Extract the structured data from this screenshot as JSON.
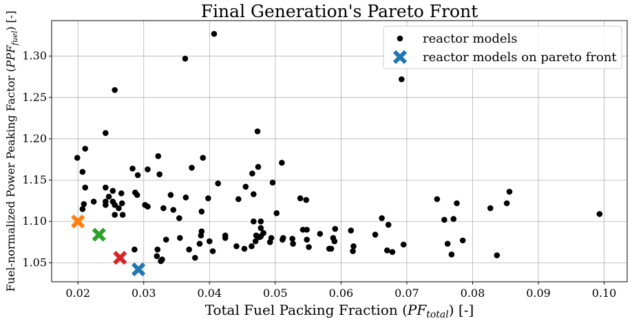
{
  "chart_data": {
    "type": "scatter",
    "title": "Final Generation's Pareto Front",
    "xlabel": "Total Fuel Packing Fraction (PF_total) [-]",
    "xlabel_parts": {
      "pre": "Total Fuel Packing Fraction (",
      "var": "PF",
      "sub": "total",
      "post": ") [-]"
    },
    "ylabel": "Fuel-normalized Power Peaking Factor (PPF_fuel) [-]",
    "ylabel_parts": {
      "pre": "Fuel-normalized Power Peaking Factor (",
      "var": "PPF",
      "sub": "fuel",
      "post": ") [-]"
    },
    "xlim": [
      0.016,
      0.1035
    ],
    "ylim": [
      1.027,
      1.343
    ],
    "xticks": [
      0.02,
      0.03,
      0.04,
      0.05,
      0.06,
      0.07,
      0.08,
      0.09,
      0.1
    ],
    "xtick_labels": [
      "0.02",
      "0.03",
      "0.04",
      "0.05",
      "0.06",
      "0.07",
      "0.08",
      "0.09",
      "0.10"
    ],
    "yticks": [
      1.05,
      1.1,
      1.15,
      1.2,
      1.25,
      1.3
    ],
    "ytick_labels": [
      "1.05",
      "1.10",
      "1.15",
      "1.20",
      "1.25",
      "1.30"
    ],
    "grid": true,
    "legend_position": "top-right",
    "colors": {
      "points": "#000000",
      "pareto": [
        "#ff7f0e",
        "#2ca02c",
        "#d62728",
        "#1f77b4"
      ],
      "legend_pareto": "#1f77b4"
    },
    "series": [
      {
        "name": "reactor models",
        "marker": "circle",
        "points": [
          [
            0.0199,
            1.177
          ],
          [
            0.0207,
            1.115
          ],
          [
            0.0209,
            1.121
          ],
          [
            0.0207,
            1.16
          ],
          [
            0.0211,
            1.188
          ],
          [
            0.0211,
            1.141
          ],
          [
            0.0224,
            1.124
          ],
          [
            0.0242,
            1.141
          ],
          [
            0.0242,
            1.124
          ],
          [
            0.0242,
            1.12
          ],
          [
            0.0242,
            1.207
          ],
          [
            0.0247,
            1.13
          ],
          [
            0.0253,
            1.124
          ],
          [
            0.0253,
            1.137
          ],
          [
            0.0256,
            1.108
          ],
          [
            0.0256,
            1.259
          ],
          [
            0.0256,
            1.12
          ],
          [
            0.0262,
            1.116
          ],
          [
            0.0266,
            1.134
          ],
          [
            0.0268,
            1.108
          ],
          [
            0.0267,
            1.122
          ],
          [
            0.0283,
            1.164
          ],
          [
            0.0286,
            1.066
          ],
          [
            0.0287,
            1.135
          ],
          [
            0.029,
            1.132
          ],
          [
            0.0291,
            1.156
          ],
          [
            0.0302,
            1.12
          ],
          [
            0.0306,
            1.118
          ],
          [
            0.0306,
            1.163
          ],
          [
            0.032,
            1.058
          ],
          [
            0.0321,
            1.066
          ],
          [
            0.0322,
            1.179
          ],
          [
            0.0324,
            1.157
          ],
          [
            0.0326,
            1.052
          ],
          [
            0.0328,
            1.054
          ],
          [
            0.033,
            1.116
          ],
          [
            0.0334,
            1.078
          ],
          [
            0.0341,
            1.132
          ],
          [
            0.0345,
            1.114
          ],
          [
            0.0354,
            1.104
          ],
          [
            0.0355,
            1.08
          ],
          [
            0.0363,
            1.297
          ],
          [
            0.0364,
            1.129
          ],
          [
            0.0369,
            1.066
          ],
          [
            0.0373,
            1.165
          ],
          [
            0.0378,
            1.056
          ],
          [
            0.0385,
            1.073
          ],
          [
            0.0387,
            1.083
          ],
          [
            0.0388,
            1.088
          ],
          [
            0.0388,
            1.112
          ],
          [
            0.039,
            1.177
          ],
          [
            0.0398,
            1.128
          ],
          [
            0.04,
            1.076
          ],
          [
            0.0405,
            1.064
          ],
          [
            0.0407,
            1.327
          ],
          [
            0.0413,
            1.146
          ],
          [
            0.0424,
            1.08
          ],
          [
            0.0424,
            1.083
          ],
          [
            0.0441,
            1.07
          ],
          [
            0.0444,
            1.127
          ],
          [
            0.0453,
            1.067
          ],
          [
            0.0455,
            1.142
          ],
          [
            0.0464,
            1.07
          ],
          [
            0.0465,
            1.158
          ],
          [
            0.0467,
            1.1
          ],
          [
            0.0467,
            1.133
          ],
          [
            0.047,
            1.076
          ],
          [
            0.0471,
            1.083
          ],
          [
            0.0473,
            1.209
          ],
          [
            0.0474,
            1.166
          ],
          [
            0.0476,
            1.081
          ],
          [
            0.0478,
            1.092
          ],
          [
            0.0478,
            1.1
          ],
          [
            0.0478,
            1.082
          ],
          [
            0.0482,
            1.086
          ],
          [
            0.0492,
            1.075
          ],
          [
            0.0494,
            1.08
          ],
          [
            0.0496,
            1.147
          ],
          [
            0.0502,
            1.11
          ],
          [
            0.051,
            1.171
          ],
          [
            0.0511,
            1.078
          ],
          [
            0.0512,
            1.08
          ],
          [
            0.0526,
            1.079
          ],
          [
            0.0527,
            1.073
          ],
          [
            0.0538,
            1.128
          ],
          [
            0.0542,
            1.09
          ],
          [
            0.0547,
            1.126
          ],
          [
            0.0548,
            1.09
          ],
          [
            0.0548,
            1.078
          ],
          [
            0.0551,
            1.069
          ],
          [
            0.0568,
            1.085
          ],
          [
            0.0582,
            1.067
          ],
          [
            0.0585,
            1.067
          ],
          [
            0.0588,
            1.08
          ],
          [
            0.059,
            1.076
          ],
          [
            0.0591,
            1.091
          ],
          [
            0.0615,
            1.089
          ],
          [
            0.0618,
            1.064
          ],
          [
            0.0619,
            1.07
          ],
          [
            0.0652,
            1.084
          ],
          [
            0.0662,
            1.104
          ],
          [
            0.067,
            1.065
          ],
          [
            0.0672,
            1.096
          ],
          [
            0.0678,
            1.063
          ],
          [
            0.0692,
            1.272
          ],
          [
            0.0695,
            1.072
          ],
          [
            0.0746,
            1.127
          ],
          [
            0.0757,
            1.102
          ],
          [
            0.0762,
            1.073
          ],
          [
            0.0768,
            1.06
          ],
          [
            0.0771,
            1.103
          ],
          [
            0.0776,
            1.122
          ],
          [
            0.0785,
            1.077
          ],
          [
            0.0827,
            1.116
          ],
          [
            0.0837,
            1.059
          ],
          [
            0.0852,
            1.122
          ],
          [
            0.0856,
            1.136
          ],
          [
            0.0993,
            1.109
          ]
        ]
      },
      {
        "name": "reactor models on pareto front",
        "marker": "x",
        "points": [
          [
            0.02,
            1.1
          ],
          [
            0.0232,
            1.084
          ],
          [
            0.0264,
            1.056
          ],
          [
            0.0292,
            1.042
          ]
        ]
      }
    ]
  }
}
